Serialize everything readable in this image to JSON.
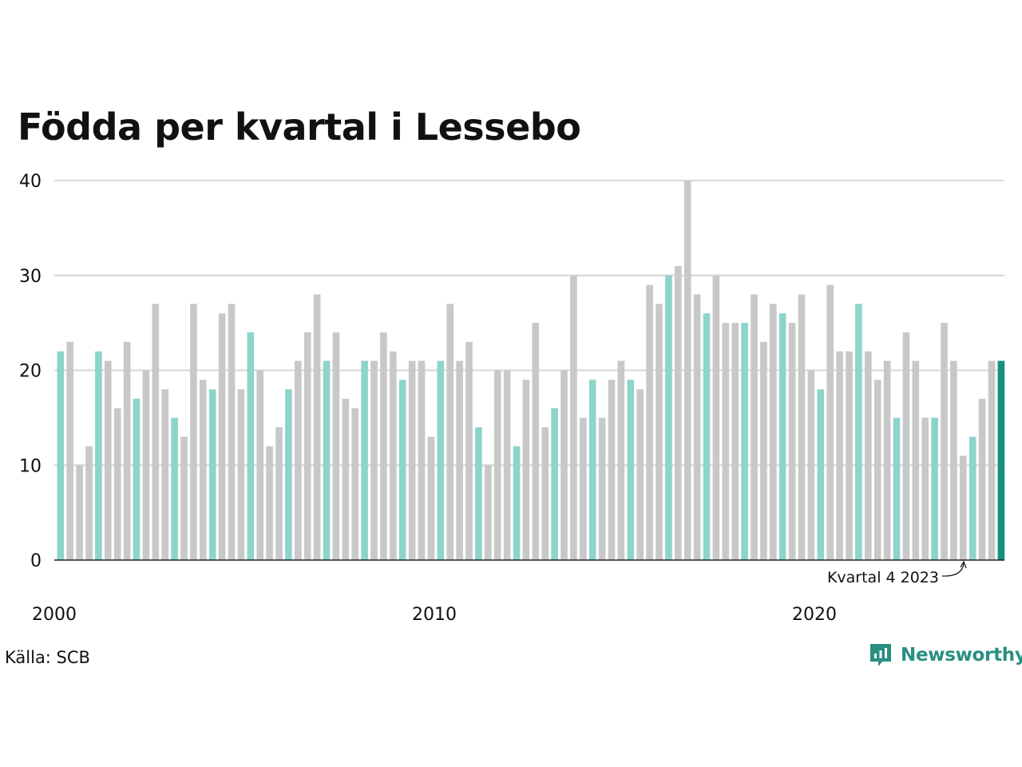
{
  "chart_data": {
    "type": "bar",
    "title": "Födda per kvartal i Lessebo",
    "ylim": [
      0,
      40
    ],
    "yticks": [
      0,
      10,
      20,
      30,
      40
    ],
    "xtick_labels": [
      {
        "label": "2000",
        "index": 0
      },
      {
        "label": "2010",
        "index": 40
      },
      {
        "label": "2020",
        "index": 80
      }
    ],
    "grid": true,
    "highlight_quarter": "Q1",
    "colors": {
      "default": "#c8c8c8",
      "highlight": "#8dd4cb",
      "latest": "#14907f",
      "grid": "#dddddd",
      "axis": "#222222"
    },
    "annotation": "Kvartal 4 2023",
    "annotation_index": 95,
    "series": [
      {
        "values": [
          22,
          23,
          10,
          12,
          22,
          21,
          16,
          23,
          17,
          20,
          27,
          18,
          15,
          13,
          27,
          19,
          18,
          26,
          27,
          18,
          24,
          20,
          12,
          14,
          18,
          21,
          24,
          28,
          21,
          24,
          17,
          16,
          21,
          21,
          24,
          22,
          19,
          21,
          21,
          13,
          21,
          27,
          21,
          23,
          14,
          10,
          20,
          20,
          12,
          19,
          25,
          14,
          16,
          20,
          30,
          15,
          19,
          15,
          19,
          21,
          19,
          18,
          29,
          27,
          30,
          31,
          40,
          28,
          26,
          30,
          25,
          25,
          25,
          28,
          23,
          27,
          26,
          25,
          28,
          20,
          18,
          29,
          22,
          22,
          27,
          22,
          19,
          21,
          15,
          24,
          21,
          15,
          15,
          25,
          21,
          11,
          13,
          17,
          21,
          21
        ]
      }
    ]
  },
  "source": "Källa: SCB",
  "brand": {
    "name": "Newsworthy",
    "color": "#2a8f80"
  }
}
